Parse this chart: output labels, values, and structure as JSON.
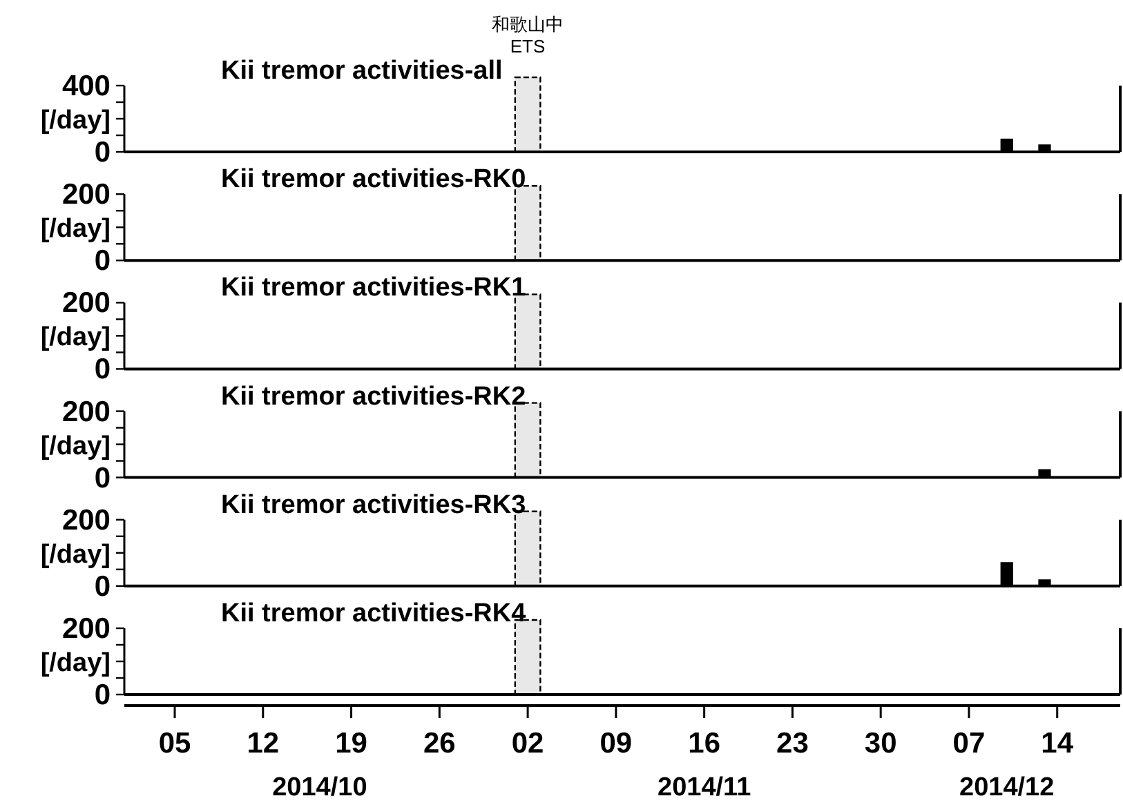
{
  "chart_data": [
    {
      "type": "bar",
      "title": "Kii tremor activities-all",
      "ylabel": "[/day]",
      "color": "#000000",
      "x": [
        "2014-12-10",
        "2014-12-13"
      ],
      "values": [
        80,
        45
      ],
      "xlim": [
        "2014-10-01",
        "2014-12-19"
      ],
      "ylim": [
        0,
        400
      ],
      "yticks": [
        0,
        {
          "value": 100,
          "label": null
        },
        {
          "value": 200,
          "label": null
        },
        {
          "value": 300,
          "label": null
        },
        400
      ],
      "tick_labels": "y",
      "bands": [
        {
          "axis": "x",
          "from": "2014-11-01",
          "to": "2014-11-03",
          "label": "和歌山中\nETS",
          "color": "#e8e8e8"
        }
      ]
    },
    {
      "type": "bar",
      "title": "Kii tremor activities-RK0",
      "ylabel": "[/day]",
      "xlim": [
        "2014-10-01",
        "2014-12-19"
      ],
      "ylim": [
        0,
        200
      ],
      "yticks": [
        0,
        {
          "value": 50,
          "label": null
        },
        {
          "value": 100,
          "label": null
        },
        {
          "value": 150,
          "label": null
        },
        200
      ],
      "tick_labels": "y",
      "bands": [
        {
          "axis": "x",
          "from": "2014-11-01",
          "to": "2014-11-03",
          "color": "#e8e8e8"
        }
      ]
    },
    {
      "type": "bar",
      "title": "Kii tremor activities-RK1",
      "ylabel": "[/day]",
      "xlim": [
        "2014-10-01",
        "2014-12-19"
      ],
      "ylim": [
        0,
        200
      ],
      "yticks": [
        0,
        {
          "value": 50,
          "label": null
        },
        {
          "value": 100,
          "label": null
        },
        {
          "value": 150,
          "label": null
        },
        200
      ],
      "tick_labels": "y",
      "bands": [
        {
          "axis": "x",
          "from": "2014-11-01",
          "to": "2014-11-03",
          "color": "#e8e8e8"
        }
      ]
    },
    {
      "type": "bar",
      "title": "Kii tremor activities-RK2",
      "ylabel": "[/day]",
      "color": "#000000",
      "x": [
        "2014-12-13"
      ],
      "values": [
        25
      ],
      "xlim": [
        "2014-10-01",
        "2014-12-19"
      ],
      "ylim": [
        0,
        200
      ],
      "yticks": [
        0,
        {
          "value": 50,
          "label": null
        },
        {
          "value": 100,
          "label": null
        },
        {
          "value": 150,
          "label": null
        },
        200
      ],
      "tick_labels": "y",
      "bands": [
        {
          "axis": "x",
          "from": "2014-11-01",
          "to": "2014-11-03",
          "color": "#e8e8e8"
        }
      ]
    },
    {
      "type": "bar",
      "title": "Kii tremor activities-RK3",
      "ylabel": "[/day]",
      "color": "#000000",
      "x": [
        "2014-12-10",
        "2014-12-13"
      ],
      "values": [
        72,
        20
      ],
      "xlim": [
        "2014-10-01",
        "2014-12-19"
      ],
      "ylim": [
        0,
        200
      ],
      "yticks": [
        0,
        {
          "value": 50,
          "label": null
        },
        {
          "value": 100,
          "label": null
        },
        {
          "value": 150,
          "label": null
        },
        200
      ],
      "tick_labels": "y",
      "bands": [
        {
          "axis": "x",
          "from": "2014-11-01",
          "to": "2014-11-03",
          "color": "#e8e8e8"
        }
      ]
    },
    {
      "type": "bar",
      "title": "Kii tremor activities-RK4",
      "ylabel": "[/day]",
      "xlim": [
        "2014-10-01",
        "2014-12-19"
      ],
      "ylim": [
        0,
        200
      ],
      "yticks": [
        0,
        {
          "value": 50,
          "label": null
        },
        {
          "value": 100,
          "label": null
        },
        {
          "value": 150,
          "label": null
        },
        200
      ],
      "xticks": [
        {
          "value": "2014-10-05",
          "label": "05"
        },
        {
          "value": "2014-10-12",
          "label": "12"
        },
        {
          "value": "2014-10-19",
          "label": "19"
        },
        {
          "value": "2014-10-26",
          "label": "26"
        },
        {
          "value": "2014-11-02",
          "label": "02"
        },
        {
          "value": "2014-11-09",
          "label": "09"
        },
        {
          "value": "2014-11-16",
          "label": "16"
        },
        {
          "value": "2014-11-23",
          "label": "23"
        },
        {
          "value": "2014-11-30",
          "label": "30"
        },
        {
          "value": "2014-12-07",
          "label": "07"
        },
        {
          "value": "2014-12-14",
          "label": "14"
        }
      ],
      "annotations": [
        "2014/10",
        "2014/11",
        "2014/12"
      ],
      "bands": [
        {
          "axis": "x",
          "from": "2014-11-01",
          "to": "2014-11-03",
          "color": "#e8e8e8"
        }
      ]
    }
  ]
}
